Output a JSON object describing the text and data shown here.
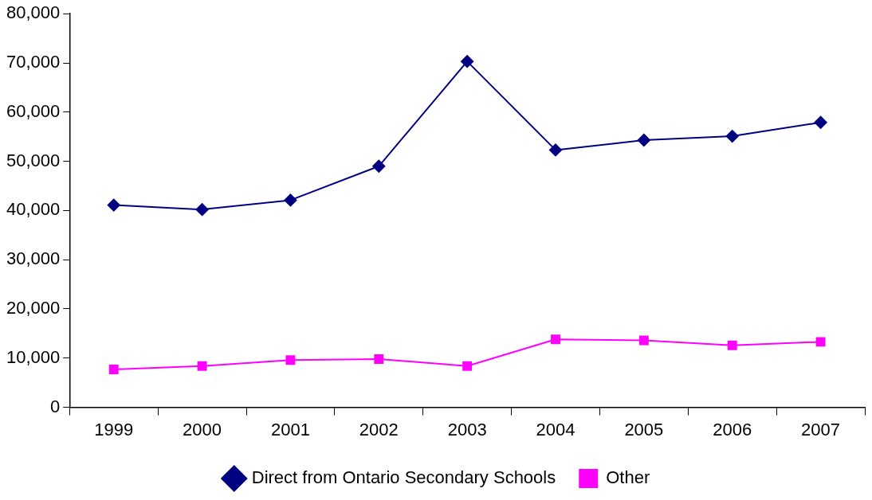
{
  "chart_data": {
    "type": "line",
    "categories": [
      "1999",
      "2000",
      "2001",
      "2002",
      "2003",
      "2004",
      "2005",
      "2006",
      "2007"
    ],
    "series": [
      {
        "name": "Direct from Ontario Secondary Schools",
        "color": "#000080",
        "marker": "diamond",
        "values": [
          41100,
          40200,
          42100,
          49000,
          70300,
          52300,
          54300,
          55100,
          57900
        ]
      },
      {
        "name": "Other",
        "color": "#ff00ff",
        "marker": "square",
        "values": [
          7700,
          8400,
          9600,
          9800,
          8400,
          13800,
          13600,
          12600,
          13300
        ]
      }
    ],
    "ylim": [
      0,
      80000
    ],
    "yticks": [
      0,
      {
        "value": 10000,
        "label": "10,000"
      },
      {
        "value": 20000,
        "label": "20,000"
      },
      {
        "value": 30000,
        "label": "30,000"
      },
      {
        "value": 40000,
        "label": "40,000"
      },
      {
        "value": 50000,
        "label": "50,000"
      },
      {
        "value": 60000,
        "label": "60,000"
      },
      {
        "value": 70000,
        "label": "70,000"
      },
      {
        "value": 80000,
        "label": "80,000"
      }
    ],
    "grid": false,
    "legend": "bottom",
    "line_style": "solid"
  }
}
